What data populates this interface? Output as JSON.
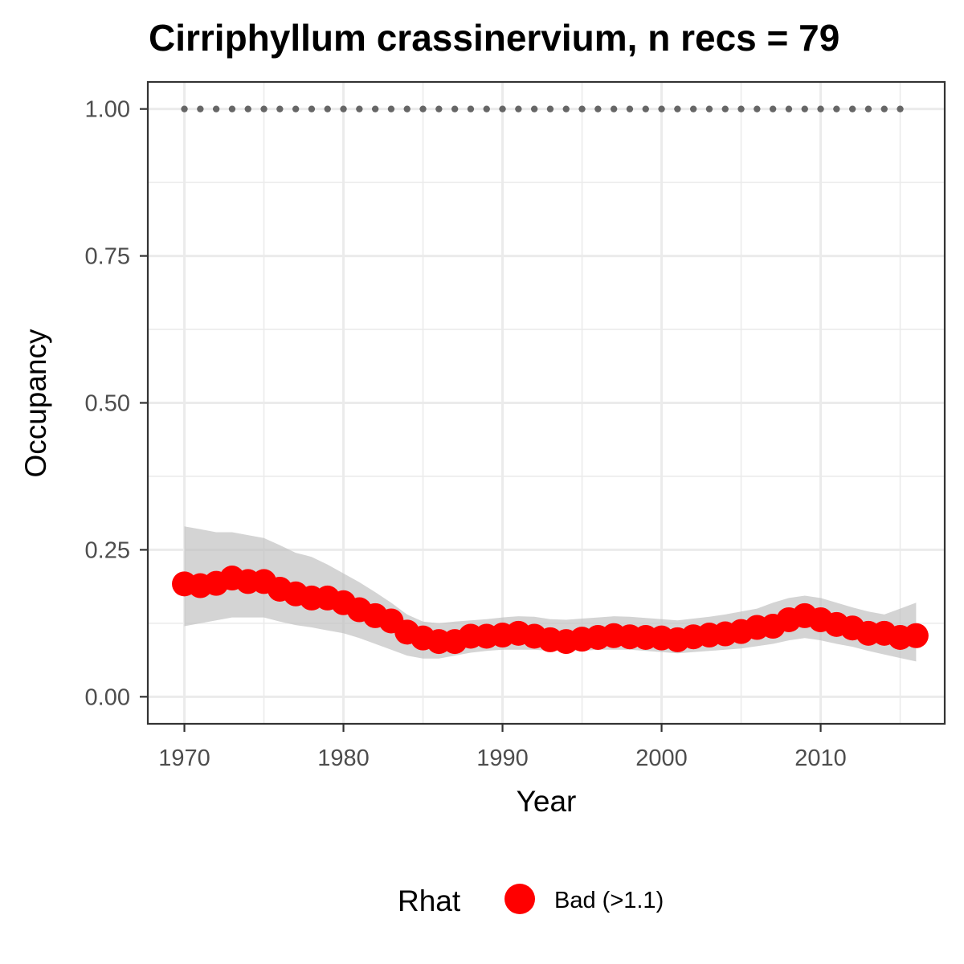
{
  "chart_data": {
    "type": "line",
    "title": "Cirriphyllum crassinervium, n recs = 79",
    "xlabel": "Year",
    "ylabel": "Occupancy",
    "xlim": [
      1967.7,
      2017.8
    ],
    "ylim": [
      -0.046,
      1.046
    ],
    "x_ticks": [
      1970,
      1980,
      1990,
      2000,
      2010
    ],
    "x_tick_labels": [
      "1970",
      "1980",
      "1990",
      "2000",
      "2010"
    ],
    "y_ticks": [
      0,
      0.25,
      0.5,
      0.75,
      1.0
    ],
    "y_tick_labels": [
      "0.00",
      "0.25",
      "0.50",
      "0.75",
      "1.00"
    ],
    "grid": true,
    "legend": {
      "title": "Rhat",
      "position": "bottom",
      "entries": [
        {
          "label": "Bad (>1.1)",
          "color": "#ff0000"
        }
      ]
    },
    "colors": {
      "points": "#ff0000",
      "ribbon": "#bdbdbd",
      "reference_dots": "#666666",
      "grid": "#ebebeb",
      "panel_border": "#333333"
    },
    "reference_line": {
      "y": 1.0,
      "x": [
        1970,
        1971,
        1972,
        1973,
        1974,
        1975,
        1976,
        1977,
        1978,
        1979,
        1980,
        1981,
        1982,
        1983,
        1984,
        1985,
        1986,
        1987,
        1988,
        1989,
        1990,
        1991,
        1992,
        1993,
        1994,
        1995,
        1996,
        1997,
        1998,
        1999,
        2000,
        2001,
        2002,
        2003,
        2004,
        2005,
        2006,
        2007,
        2008,
        2009,
        2010,
        2011,
        2012,
        2013,
        2014,
        2015
      ]
    },
    "series": [
      {
        "name": "Occupancy",
        "x": [
          1970,
          1971,
          1972,
          1973,
          1974,
          1975,
          1976,
          1977,
          1978,
          1979,
          1980,
          1981,
          1982,
          1983,
          1984,
          1985,
          1986,
          1987,
          1988,
          1989,
          1990,
          1991,
          1992,
          1993,
          1994,
          1995,
          1996,
          1997,
          1998,
          1999,
          2000,
          2001,
          2002,
          2003,
          2004,
          2005,
          2006,
          2007,
          2008,
          2009,
          2010,
          2011,
          2012,
          2013,
          2014,
          2015,
          2016
        ],
        "y": [
          0.192,
          0.189,
          0.193,
          0.202,
          0.196,
          0.196,
          0.183,
          0.175,
          0.168,
          0.168,
          0.16,
          0.148,
          0.138,
          0.129,
          0.11,
          0.1,
          0.094,
          0.094,
          0.103,
          0.103,
          0.105,
          0.108,
          0.103,
          0.097,
          0.094,
          0.098,
          0.101,
          0.104,
          0.102,
          0.101,
          0.1,
          0.097,
          0.102,
          0.105,
          0.107,
          0.111,
          0.118,
          0.12,
          0.131,
          0.138,
          0.131,
          0.123,
          0.117,
          0.108,
          0.108,
          0.101,
          0.104
        ],
        "lower": [
          0.12,
          0.125,
          0.13,
          0.135,
          0.135,
          0.135,
          0.128,
          0.122,
          0.118,
          0.113,
          0.108,
          0.1,
          0.09,
          0.08,
          0.07,
          0.065,
          0.065,
          0.07,
          0.075,
          0.078,
          0.08,
          0.08,
          0.08,
          0.078,
          0.078,
          0.078,
          0.08,
          0.08,
          0.08,
          0.078,
          0.076,
          0.074,
          0.076,
          0.078,
          0.08,
          0.082,
          0.086,
          0.09,
          0.096,
          0.1,
          0.096,
          0.09,
          0.085,
          0.078,
          0.072,
          0.066,
          0.06
        ],
        "upper": [
          0.29,
          0.285,
          0.28,
          0.28,
          0.275,
          0.27,
          0.258,
          0.245,
          0.238,
          0.225,
          0.21,
          0.195,
          0.178,
          0.16,
          0.14,
          0.128,
          0.125,
          0.128,
          0.13,
          0.132,
          0.135,
          0.137,
          0.136,
          0.132,
          0.131,
          0.133,
          0.135,
          0.137,
          0.136,
          0.134,
          0.132,
          0.13,
          0.133,
          0.136,
          0.14,
          0.145,
          0.15,
          0.16,
          0.168,
          0.172,
          0.168,
          0.16,
          0.152,
          0.145,
          0.14,
          0.15,
          0.16
        ]
      }
    ]
  }
}
